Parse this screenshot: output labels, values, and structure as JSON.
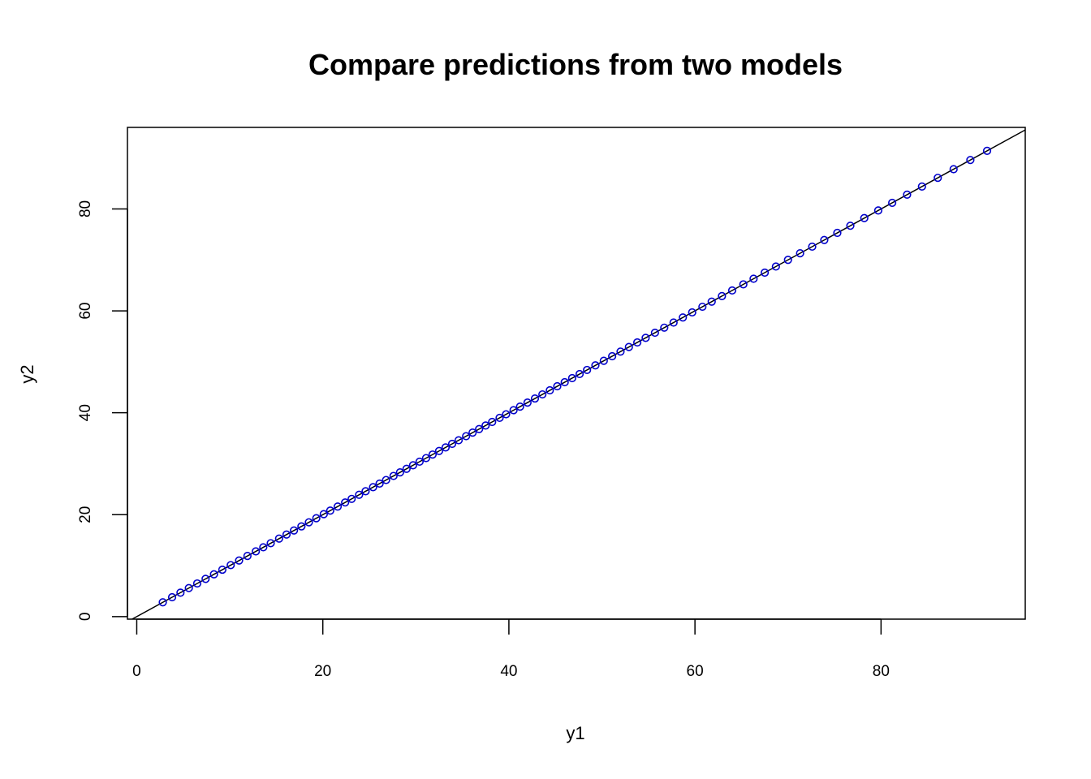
{
  "chart_data": {
    "type": "scatter",
    "title": "Compare predictions from two models",
    "xlabel": "y1",
    "ylabel": "y2",
    "xlim": [
      -1,
      95.5
    ],
    "ylim": [
      -0.5,
      96
    ],
    "x_ticks": [
      0,
      20,
      40,
      60,
      80
    ],
    "y_ticks": [
      0,
      20,
      40,
      60,
      80
    ],
    "x_tick_labels": [
      "0",
      "20",
      "40",
      "60",
      "80"
    ],
    "y_tick_labels": [
      "0",
      "20",
      "40",
      "60",
      "80"
    ],
    "grid": false,
    "legend": "none",
    "reference_line": {
      "intercept": 0,
      "slope": 1,
      "color": "#000000"
    },
    "point_color": "#0000cc",
    "series": [
      {
        "x": [
          2.8,
          3.8,
          4.7,
          5.6,
          6.5,
          7.4,
          8.3,
          9.2,
          10.1,
          11.0,
          11.9,
          12.8,
          13.6,
          14.4,
          15.3,
          16.1,
          16.9,
          17.7,
          18.5,
          19.3,
          20.1,
          20.8,
          21.6,
          22.4,
          23.1,
          23.9,
          24.6,
          25.4,
          26.1,
          26.8,
          27.6,
          28.3,
          29.0,
          29.7,
          30.4,
          31.1,
          31.8,
          32.5,
          33.2,
          33.9,
          34.6,
          35.4,
          36.1,
          36.8,
          37.5,
          38.2,
          39.0,
          39.7,
          40.5,
          41.2,
          42.0,
          42.8,
          43.6,
          44.4,
          45.2,
          46.0,
          46.8,
          47.6,
          48.4,
          49.3,
          50.2,
          51.1,
          52.0,
          52.9,
          53.8,
          54.7,
          55.7,
          56.7,
          57.7,
          58.7,
          59.7,
          60.8,
          61.8,
          62.9,
          64.0,
          65.2,
          66.3,
          67.5,
          68.7,
          70.0,
          71.3,
          72.6,
          73.9,
          75.3,
          76.7,
          78.2,
          79.7,
          81.2,
          82.8,
          84.4,
          86.1,
          87.8,
          89.6,
          91.4
        ]
      }
    ]
  }
}
